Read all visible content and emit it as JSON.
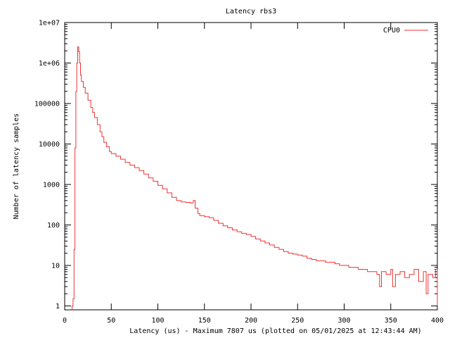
{
  "chart_data": {
    "type": "line",
    "title": "Latency rbs3",
    "xlabel": "Latency (us) - Maximum 7807 us (plotted on 05/01/2025 at 12:43:44 AM)",
    "ylabel": "Number of latency samples",
    "xlim": [
      0,
      400
    ],
    "ylim": [
      0.8,
      10000000
    ],
    "yscale": "log",
    "grid": false,
    "legend_position": "top-right",
    "x_ticks": [
      0,
      50,
      100,
      150,
      200,
      250,
      300,
      350,
      400
    ],
    "x_tick_labels": [
      "0",
      "50",
      "100",
      "150",
      "200",
      "250",
      "300",
      "350",
      "400"
    ],
    "y_ticks": [
      1,
      10,
      100,
      1000,
      10000,
      100000,
      1000000,
      10000000
    ],
    "y_tick_labels": [
      "1",
      "10",
      "100",
      "1000",
      "10000",
      "100000",
      "1e+06",
      "1e+07"
    ],
    "series": [
      {
        "name": "CPU0",
        "color": "#ee3333",
        "step": true,
        "points": [
          [
            8,
            1
          ],
          [
            9,
            1.5
          ],
          [
            10,
            25
          ],
          [
            11,
            8000
          ],
          [
            12,
            200000
          ],
          [
            13,
            1000000
          ],
          [
            14,
            2500000
          ],
          [
            15,
            1900000
          ],
          [
            16,
            1000000
          ],
          [
            17,
            500000
          ],
          [
            18,
            350000
          ],
          [
            20,
            250000
          ],
          [
            22,
            180000
          ],
          [
            25,
            120000
          ],
          [
            28,
            80000
          ],
          [
            30,
            60000
          ],
          [
            32,
            45000
          ],
          [
            35,
            30000
          ],
          [
            38,
            20000
          ],
          [
            40,
            15000
          ],
          [
            42,
            11000
          ],
          [
            45,
            8500
          ],
          [
            48,
            6500
          ],
          [
            50,
            5800
          ],
          [
            55,
            5000
          ],
          [
            60,
            4200
          ],
          [
            65,
            3500
          ],
          [
            70,
            3000
          ],
          [
            75,
            2600
          ],
          [
            80,
            2200
          ],
          [
            85,
            1800
          ],
          [
            90,
            1450
          ],
          [
            95,
            1200
          ],
          [
            100,
            950
          ],
          [
            105,
            780
          ],
          [
            110,
            620
          ],
          [
            115,
            480
          ],
          [
            120,
            400
          ],
          [
            125,
            370
          ],
          [
            130,
            360
          ],
          [
            135,
            350
          ],
          [
            138,
            400
          ],
          [
            140,
            260
          ],
          [
            143,
            190
          ],
          [
            145,
            170
          ],
          [
            150,
            160
          ],
          [
            155,
            150
          ],
          [
            160,
            130
          ],
          [
            165,
            110
          ],
          [
            170,
            95
          ],
          [
            175,
            85
          ],
          [
            180,
            75
          ],
          [
            185,
            68
          ],
          [
            190,
            62
          ],
          [
            195,
            58
          ],
          [
            200,
            52
          ],
          [
            205,
            45
          ],
          [
            210,
            40
          ],
          [
            215,
            36
          ],
          [
            220,
            32
          ],
          [
            225,
            28
          ],
          [
            230,
            25
          ],
          [
            235,
            22
          ],
          [
            240,
            20
          ],
          [
            245,
            19
          ],
          [
            250,
            18
          ],
          [
            255,
            17
          ],
          [
            260,
            15
          ],
          [
            265,
            14
          ],
          [
            270,
            13
          ],
          [
            275,
            13
          ],
          [
            280,
            12
          ],
          [
            285,
            12
          ],
          [
            290,
            11
          ],
          [
            295,
            10
          ],
          [
            300,
            10
          ],
          [
            305,
            9
          ],
          [
            310,
            9
          ],
          [
            315,
            8
          ],
          [
            320,
            8
          ],
          [
            325,
            7
          ],
          [
            330,
            7
          ],
          [
            335,
            6
          ],
          [
            338,
            3
          ],
          [
            340,
            7
          ],
          [
            345,
            6
          ],
          [
            350,
            8
          ],
          [
            352,
            3
          ],
          [
            355,
            6
          ],
          [
            360,
            7
          ],
          [
            365,
            5
          ],
          [
            370,
            6
          ],
          [
            375,
            8
          ],
          [
            380,
            4
          ],
          [
            385,
            7
          ],
          [
            388,
            2
          ],
          [
            390,
            6
          ],
          [
            395,
            5
          ],
          [
            398,
            8
          ],
          [
            400,
            1
          ]
        ]
      }
    ]
  }
}
